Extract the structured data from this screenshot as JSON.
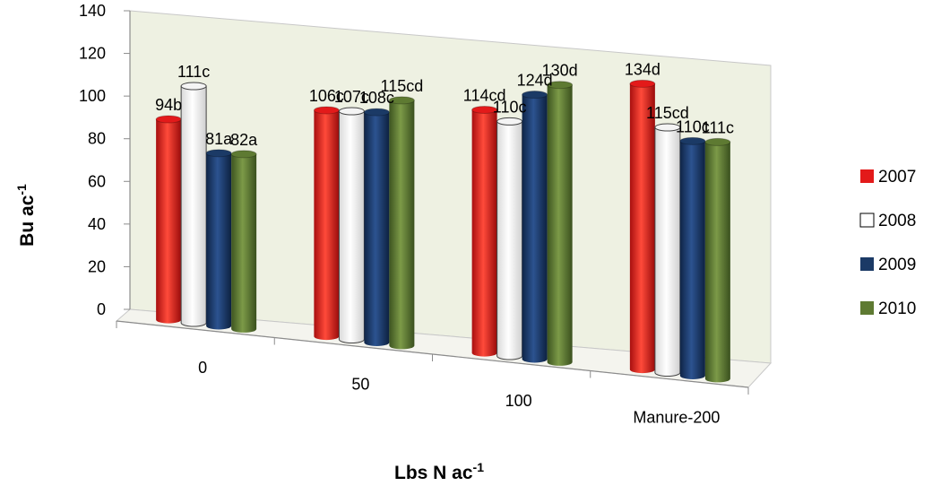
{
  "chart_data": {
    "type": "bar",
    "categories": [
      "0",
      "50",
      "100",
      "Manure-200"
    ],
    "series": [
      {
        "name": "2007",
        "color": "#e31a1a",
        "values": [
          94,
          106,
          114,
          134
        ],
        "labels": [
          "94b",
          "106c",
          "114cd",
          "134d"
        ]
      },
      {
        "name": "2008",
        "color": "#ffffff",
        "values": [
          111,
          107,
          110,
          115
        ],
        "labels": [
          "111c",
          "107c",
          "110c",
          "115cd"
        ]
      },
      {
        "name": "2009",
        "color": "#1b3a66",
        "values": [
          81,
          108,
          124,
          110
        ],
        "labels": [
          "81a",
          "108c",
          "124d",
          "110c"
        ]
      },
      {
        "name": "2010",
        "color": "#5e7a32",
        "values": [
          82,
          115,
          130,
          111
        ],
        "labels": [
          "82a",
          "115cd",
          "130d",
          "111c"
        ]
      }
    ],
    "ylim": [
      0,
      140
    ],
    "yticks": [
      0,
      20,
      40,
      60,
      80,
      100,
      120,
      140
    ],
    "ylabel": {
      "main": "Bu ac",
      "sup": "-1"
    },
    "xlabel": {
      "main": "Lbs N ac",
      "sup": "-1"
    },
    "legend_position": "right",
    "three_d": true,
    "wall_color": "#eef1e2"
  }
}
